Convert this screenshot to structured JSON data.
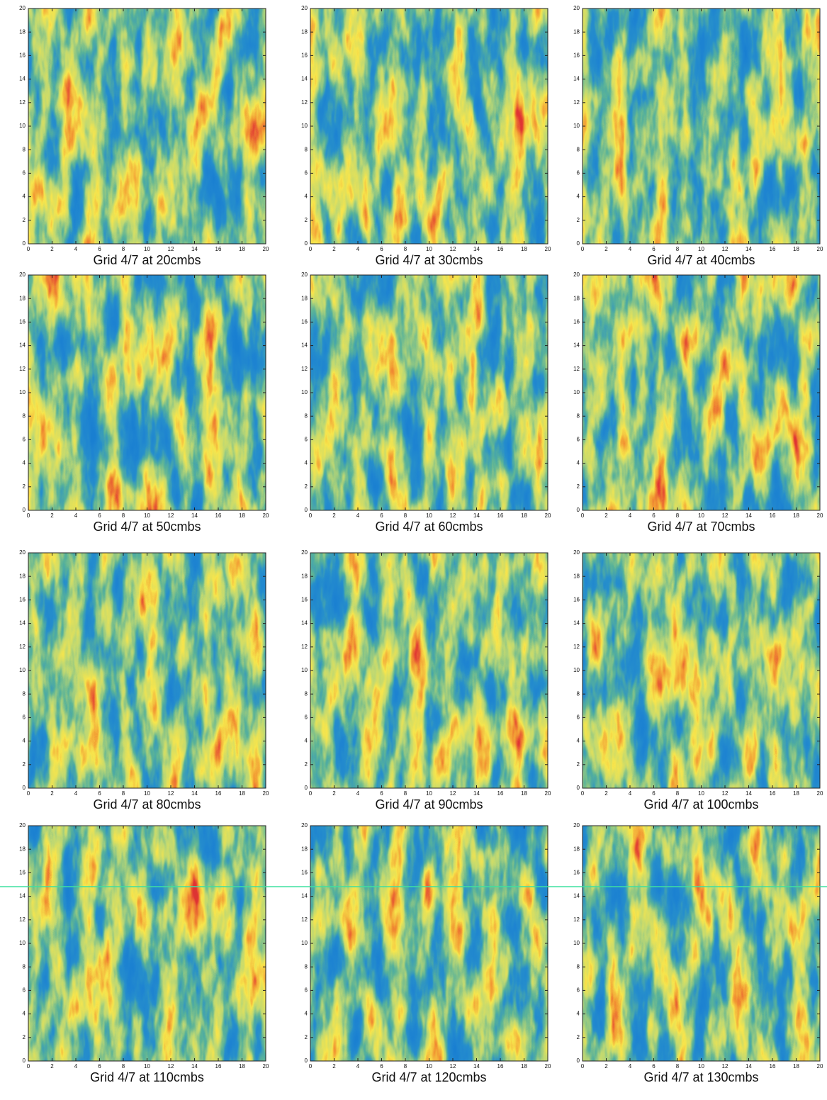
{
  "axis": {
    "ticks": [
      0,
      2,
      4,
      6,
      8,
      10,
      12,
      14,
      16,
      18,
      20
    ]
  },
  "panels": [
    {
      "caption": "Grid 4/7 at 20cmbs"
    },
    {
      "caption": "Grid 4/7 at 30cmbs"
    },
    {
      "caption": "Grid 4/7 at 40cmbs"
    },
    {
      "caption": "Grid 4/7 at 50cmbs"
    },
    {
      "caption": "Grid 4/7 at 60cmbs"
    },
    {
      "caption": "Grid 4/7 at 70cmbs"
    },
    {
      "caption": "Grid 4/7 at 80cmbs"
    },
    {
      "caption": "Grid 4/7 at 90cmbs"
    },
    {
      "caption": "Grid 4/7 at 100cmbs"
    },
    {
      "caption": "Grid 4/7 at 110cmbs"
    },
    {
      "caption": "Grid 4/7 at 120cmbs"
    },
    {
      "caption": "Grid 4/7 at 130cmbs"
    }
  ]
}
